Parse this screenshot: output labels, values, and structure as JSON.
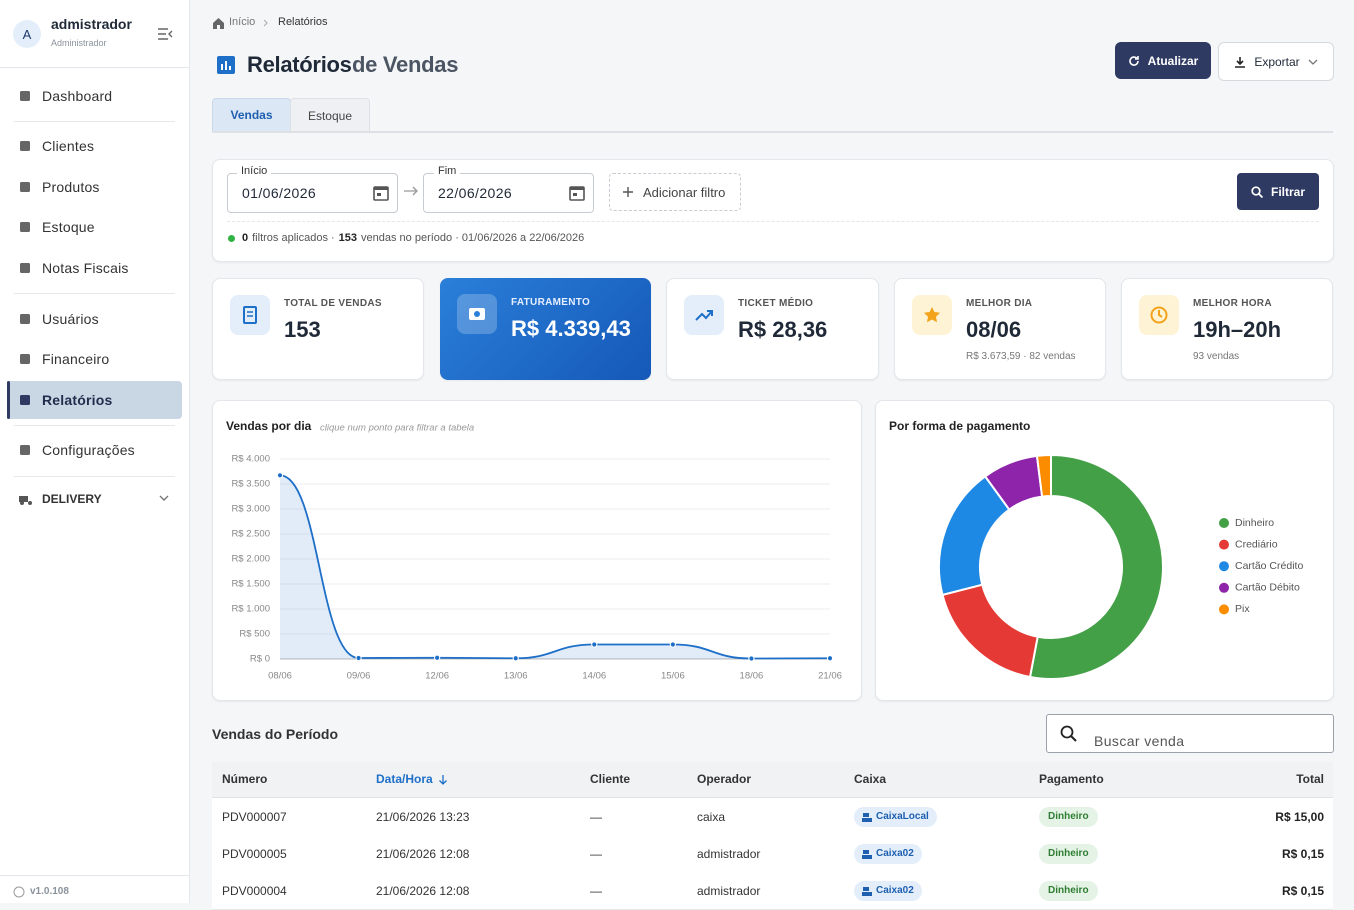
{
  "sidebar": {
    "avatar": "A",
    "user": "admistrador",
    "role": "Administrador",
    "nav": [
      "Dashboard",
      "Clientes",
      "Produtos",
      "Estoque",
      "Notas Fiscais",
      "Usuários",
      "Financeiro",
      "Relatórios",
      "Configurações"
    ],
    "delivery": "DELIVERY",
    "version": "v1.0.108"
  },
  "breadcrumb": [
    "Início",
    "Relatórios"
  ],
  "header": {
    "title": "Relatórios",
    "title_suffix": "de Vendas",
    "refresh": "Atualizar",
    "export": "Exportar"
  },
  "tabs": [
    "Vendas",
    "Estoque"
  ],
  "filters": {
    "start_label": "Início",
    "start_value": "01/06/2026",
    "end_label": "Fim",
    "end_value": "22/06/2026",
    "add_filter": "Adicionar filtro",
    "apply": "Filtrar",
    "summary": {
      "applied": "0",
      "applied_text": "filtros aplicados ·",
      "sales": "153",
      "sales_text": "vendas no período · 01/06/2026 a 22/06/2026"
    }
  },
  "kpis": [
    {
      "label": "TOTAL DE VENDAS",
      "value": "153"
    },
    {
      "label": "FATURAMENTO",
      "value": "R$ 4.339,43"
    },
    {
      "label": "TICKET MÉDIO",
      "value": "R$ 28,36"
    },
    {
      "label": "MELHOR DIA",
      "value": "08/06",
      "note": "R$ 3.673,59 · 82 vendas"
    },
    {
      "label": "MELHOR HORA",
      "value": "19h–20h",
      "note": "93 vendas"
    }
  ],
  "chart_data": [
    {
      "type": "line",
      "title": "Vendas por dia",
      "subtitle": "clique num ponto para filtrar a tabela",
      "categories": [
        "08/06",
        "09/06",
        "12/06",
        "13/06",
        "14/06",
        "15/06",
        "18/06",
        "21/06"
      ],
      "values": [
        3673.59,
        20,
        25,
        15,
        290,
        290,
        10,
        15
      ],
      "color": "#1e6fc8",
      "ylim": [
        0,
        4000
      ],
      "yticks": [
        {
          "value": 0,
          "label": "R$ 0"
        },
        {
          "value": 500,
          "label": "R$ 500"
        },
        {
          "value": 1000,
          "label": "R$ 1.000"
        },
        {
          "value": 1500,
          "label": "R$ 1.500"
        },
        {
          "value": 2000,
          "label": "R$ 2.000"
        },
        {
          "value": 2500,
          "label": "R$ 2.500"
        },
        {
          "value": 3000,
          "label": "R$ 3.000"
        },
        {
          "value": 3500,
          "label": "R$ 3.500"
        },
        {
          "value": 4000,
          "label": "R$ 4.000"
        }
      ],
      "grid": true
    },
    {
      "type": "pie",
      "title": "Por forma de pagamento",
      "categories": [
        "Dinheiro",
        "Crediário",
        "Cartão Crédito",
        "Cartão Débito",
        "Pix"
      ],
      "values": [
        53,
        18,
        19,
        8,
        2
      ],
      "colors": [
        "#43a047",
        "#e53935",
        "#1e88e5",
        "#8e24aa",
        "#fb8c00"
      ],
      "legend": "right"
    }
  ],
  "table": {
    "title": "Vendas do Período",
    "search": "Buscar venda",
    "columns": [
      "Número",
      "Data/Hora",
      "Cliente",
      "Operador",
      "Caixa",
      "Pagamento",
      "Total"
    ],
    "rows": [
      [
        "PDV000007",
        "21/06/2026 13:23",
        "—",
        "caixa",
        "CaixaLocal",
        "Dinheiro",
        "R$ 15,00"
      ],
      [
        "PDV000005",
        "21/06/2026 12:08",
        "—",
        "admistrador",
        "Caixa02",
        "Dinheiro",
        "R$ 0,15"
      ],
      [
        "PDV000004",
        "21/06/2026 12:08",
        "—",
        "admistrador",
        "Caixa02",
        "Dinheiro",
        "R$ 0,15"
      ]
    ]
  }
}
